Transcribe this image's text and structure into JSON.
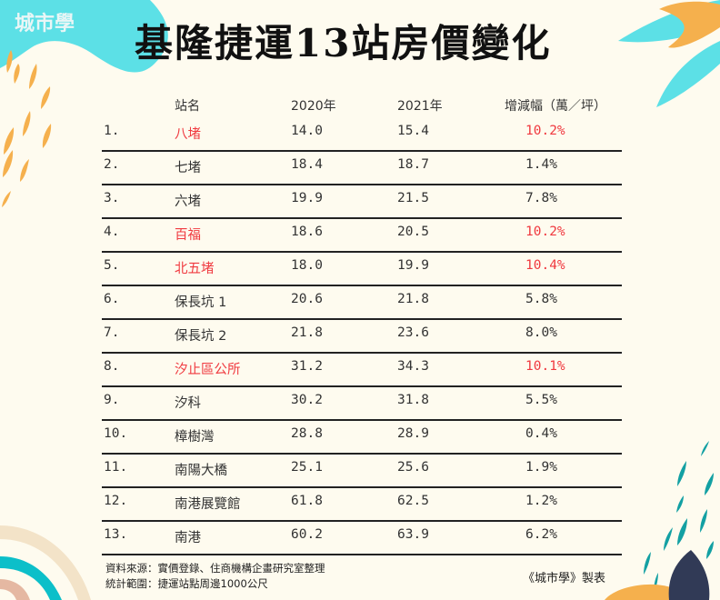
{
  "brand": {
    "logo_text": "城市學"
  },
  "title": "基隆捷運13站房價變化",
  "table": {
    "headers": {
      "station": "站名",
      "y2020": "2020年",
      "y2021": "2021年",
      "change": "增減幅（萬／坪）"
    },
    "rows": [
      {
        "index": "1.",
        "station": "八堵",
        "y2020": "14.0",
        "y2021": "15.4",
        "change": "10.2%",
        "highlight": true
      },
      {
        "index": "2.",
        "station": "七堵",
        "y2020": "18.4",
        "y2021": "18.7",
        "change": "1.4%",
        "highlight": false
      },
      {
        "index": "3.",
        "station": "六堵",
        "y2020": "19.9",
        "y2021": "21.5",
        "change": "7.8%",
        "highlight": false
      },
      {
        "index": "4.",
        "station": "百福",
        "y2020": "18.6",
        "y2021": "20.5",
        "change": "10.2%",
        "highlight": true
      },
      {
        "index": "5.",
        "station": "北五堵",
        "y2020": "18.0",
        "y2021": "19.9",
        "change": "10.4%",
        "highlight": true
      },
      {
        "index": "6.",
        "station": "保長坑 1",
        "y2020": "20.6",
        "y2021": "21.8",
        "change": "5.8%",
        "highlight": false
      },
      {
        "index": "7.",
        "station": "保長坑 2",
        "y2020": "21.8",
        "y2021": "23.6",
        "change": "8.0%",
        "highlight": false
      },
      {
        "index": "8.",
        "station": "汐止區公所",
        "y2020": "31.2",
        "y2021": "34.3",
        "change": "10.1%",
        "highlight": true
      },
      {
        "index": "9.",
        "station": "汐科",
        "y2020": "30.2",
        "y2021": "31.8",
        "change": "5.5%",
        "highlight": false
      },
      {
        "index": "10.",
        "station": "樟樹灣",
        "y2020": "28.8",
        "y2021": "28.9",
        "change": "0.4%",
        "highlight": false
      },
      {
        "index": "11.",
        "station": "南陽大橋",
        "y2020": "25.1",
        "y2021": "25.6",
        "change": "1.9%",
        "highlight": false
      },
      {
        "index": "12.",
        "station": "南港展覽館",
        "y2020": "61.8",
        "y2021": "62.5",
        "change": "1.2%",
        "highlight": false
      },
      {
        "index": "13.",
        "station": "南港",
        "y2020": "60.2",
        "y2021": "63.9",
        "change": "6.2%",
        "highlight": false
      }
    ]
  },
  "footer": {
    "source": "資料來源：實價登錄、住商機構企畫研究室整理",
    "scope": "統計範圍：捷運站點周邊1000公尺",
    "credit": "《城市學》製表"
  },
  "colors": {
    "background": "#fefbef",
    "highlight_red": "#f0393f",
    "cyan": "#5ce0e6",
    "orange": "#f5b04d",
    "teal": "#13a0a3",
    "navy": "#313a56"
  }
}
